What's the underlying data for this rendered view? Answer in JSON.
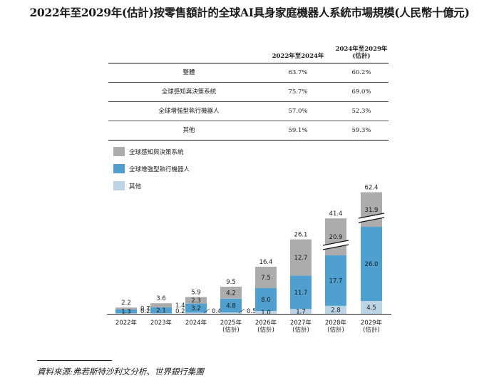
{
  "title": "2022年至2029年(估計)按零售額計的全球AI具身家庭機器人系統市場規模(人民幣十億元)",
  "table": {
    "headers": [
      "2022年至2024年",
      "2024年至2029年\n(估計)"
    ],
    "rows": [
      {
        "label": "整體",
        "v1": "63.7%",
        "v2": "60.2%"
      },
      {
        "label": "全球感知與決策系統",
        "v1": "75.7%",
        "v2": "69.0%"
      },
      {
        "label": "全球增強型執行機器人",
        "v1": "57.0%",
        "v2": "52.3%"
      },
      {
        "label": "其他",
        "v1": "59.1%",
        "v2": "59.3%"
      }
    ]
  },
  "chart_data": {
    "type": "bar",
    "stacked": true,
    "categories": [
      "2022年",
      "2023年",
      "2024年",
      "2025年\n(估計)",
      "2026年\n(估計)",
      "2027年\n(估計)",
      "2028年\n(估計)",
      "2029年\n(估計)"
    ],
    "series": [
      {
        "name": "其他",
        "values": [
          0.2,
          0.2,
          0.4,
          0.5,
          1.0,
          1.7,
          2.8,
          4.5
        ],
        "color": "#bdd3e6"
      },
      {
        "name": "全球增強型執行機器人",
        "values": [
          1.3,
          2.1,
          3.2,
          4.8,
          8.0,
          11.7,
          17.7,
          26.0
        ],
        "color": "#4fa0cf"
      },
      {
        "name": "全球感知與決策系統",
        "values": [
          0.7,
          1.4,
          2.3,
          4.2,
          7.5,
          12.7,
          20.9,
          31.9
        ],
        "color": "#acacac"
      }
    ],
    "totals": [
      2.2,
      3.6,
      5.9,
      9.5,
      16.4,
      26.1,
      41.4,
      62.4
    ],
    "legend": [
      "全球感知與決策系統",
      "全球增強型執行機器人",
      "其他"
    ],
    "legend_placement": "top-left",
    "axis_break_categories": [
      "2028年\n(估計)",
      "2029年\n(估計)"
    ]
  },
  "source": "資料來源:弗若斯特沙利文分析、世界銀行集團"
}
